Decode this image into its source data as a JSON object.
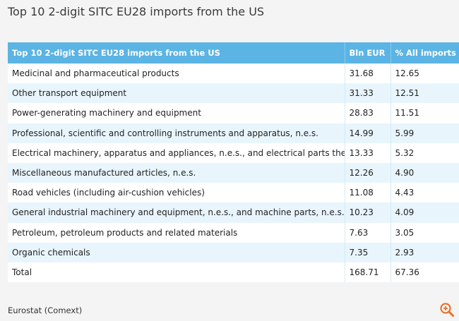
{
  "title": "Top 10 2-digit SITC EU28 imports from the US",
  "source": "Eurostat (Comext)",
  "zoom_icon": "zoom-in-icon",
  "colors": {
    "header_bg": "#5bb4e3",
    "row_alt": "#e8f5fc",
    "icon": "#e8732a"
  },
  "chart_data": {
    "type": "table",
    "columns": [
      "Top 10 2-digit SITC EU28 imports from the US",
      "Bln EUR",
      "% All imports"
    ],
    "rows": [
      [
        "Medicinal and pharmaceutical products",
        "31.68",
        "12.65"
      ],
      [
        "Other transport equipment",
        "31.33",
        "12.51"
      ],
      [
        "Power-generating machinery and equipment",
        "28.83",
        "11.51"
      ],
      [
        "Professional, scientific and controlling instruments and apparatus, n.e.s.",
        "14.99",
        "5.99"
      ],
      [
        "Electrical machinery, apparatus and appliances, n.e.s., and electrical parts thereof",
        "13.33",
        "5.32"
      ],
      [
        "Miscellaneous manufactured articles, n.e.s.",
        "12.26",
        "4.90"
      ],
      [
        "Road vehicles (including air-cushion vehicles)",
        "11.08",
        "4.43"
      ],
      [
        "General industrial machinery and equipment, n.e.s., and machine parts, n.e.s.",
        "10.23",
        "4.09"
      ],
      [
        "Petroleum, petroleum products and related materials",
        "7.63",
        "3.05"
      ],
      [
        "Organic chemicals",
        "7.35",
        "2.93"
      ],
      [
        "Total",
        "168.71",
        "67.36"
      ]
    ]
  }
}
